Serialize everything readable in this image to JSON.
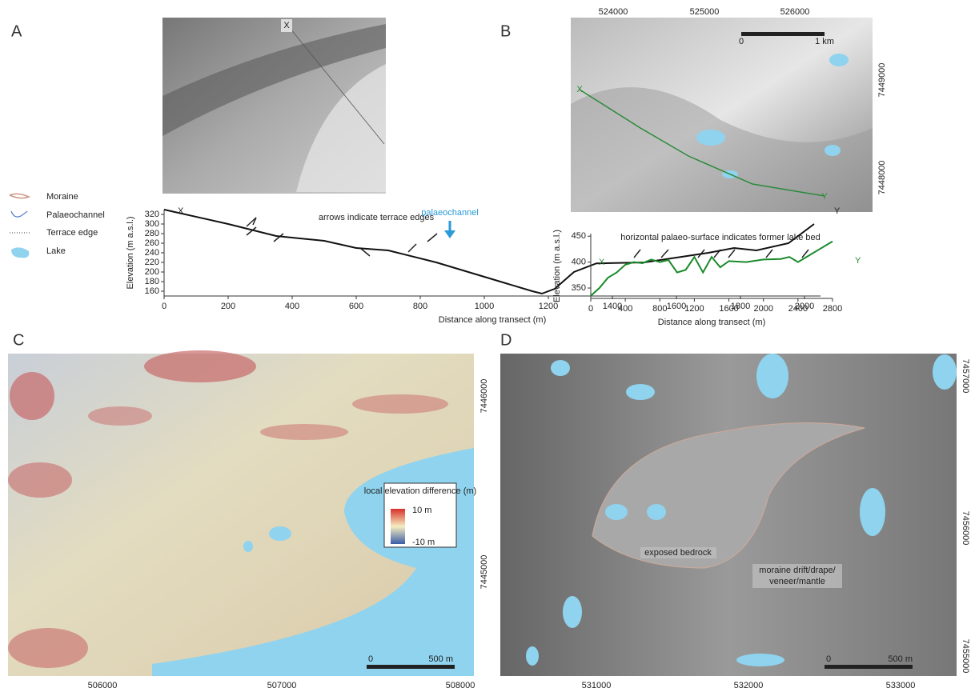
{
  "panels": [
    "A",
    "B",
    "C",
    "D"
  ],
  "legend": [
    "Moraine",
    "Palaeochannel",
    "Terrace edge",
    "Lake"
  ],
  "maps": {
    "A": {
      "labels": [
        "X"
      ]
    },
    "B": {
      "xticks": [
        524000,
        525000,
        526000
      ],
      "yticks": [
        7449000,
        7448000
      ],
      "scale": [
        "0",
        "1 km"
      ],
      "labels": [
        "X",
        "Y"
      ]
    },
    "C": {
      "xticks": [
        506000,
        507000,
        508000
      ],
      "yticks": [
        7446000,
        7445000
      ],
      "scale": [
        "0",
        "500 m"
      ],
      "colorbar": {
        "title": "local elevation difference (m)",
        "max": "10 m",
        "min": "-10 m"
      }
    },
    "D": {
      "xticks": [
        531000,
        532000,
        533000
      ],
      "yticks": [
        7457000,
        7456000,
        7455000
      ],
      "scale": [
        "0",
        "500 m"
      ],
      "labels": [
        "exposed bedrock",
        "moraine drift/drape/",
        "veneer/mantle"
      ]
    }
  },
  "chart_data": [
    {
      "type": "line",
      "x_label": "Distance along transect (m)",
      "y_label": "Elevation (m a.s.l.)",
      "annotations": [
        "arrows indicate terrace edges",
        "palaeochannel"
      ],
      "start_label": "X",
      "end_label": "Y",
      "x": [
        0,
        200,
        350,
        500,
        600,
        700,
        850,
        950,
        1050,
        1150,
        1180,
        1220,
        1280,
        1350,
        1500,
        1600,
        1700,
        1780,
        1850,
        1950,
        2030
      ],
      "series": [
        {
          "color": "#111111",
          "values": [
            330,
            300,
            275,
            265,
            250,
            245,
            220,
            200,
            180,
            160,
            155,
            165,
            200,
            218,
            220,
            230,
            240,
            250,
            245,
            260,
            300
          ]
        }
      ],
      "xlim": [
        0,
        2050
      ],
      "ylim": [
        150,
        330
      ],
      "xticks": [
        0,
        200,
        400,
        600,
        800,
        1000,
        1200,
        1400,
        1600,
        1800,
        2000
      ],
      "yticks": [
        160,
        180,
        200,
        220,
        240,
        260,
        280,
        300,
        320
      ]
    },
    {
      "type": "line",
      "x_label": "Distance along transect (m)",
      "y_label": "Elevation (m a.s.l.)",
      "annotations": [
        "horizontal palaeo-surface indicates former lake bed"
      ],
      "start_label": "X",
      "end_label": "Y",
      "x": [
        0,
        100,
        200,
        300,
        400,
        500,
        600,
        700,
        800,
        900,
        1000,
        1100,
        1200,
        1300,
        1400,
        1500,
        1600,
        1800,
        2000,
        2200,
        2300,
        2400,
        2500,
        2600,
        2800
      ],
      "series": [
        {
          "color": "#1a8a2a",
          "values": [
            335,
            350,
            370,
            380,
            395,
            400,
            398,
            405,
            400,
            404,
            380,
            385,
            410,
            380,
            410,
            390,
            402,
            400,
            405,
            406,
            410,
            400,
            410,
            420,
            440
          ]
        }
      ],
      "xlim": [
        0,
        2800
      ],
      "ylim": [
        330,
        455
      ],
      "xticks": [
        0,
        400,
        800,
        1200,
        1600,
        2000,
        2400,
        2800
      ],
      "yticks": [
        350,
        400,
        450
      ]
    }
  ]
}
